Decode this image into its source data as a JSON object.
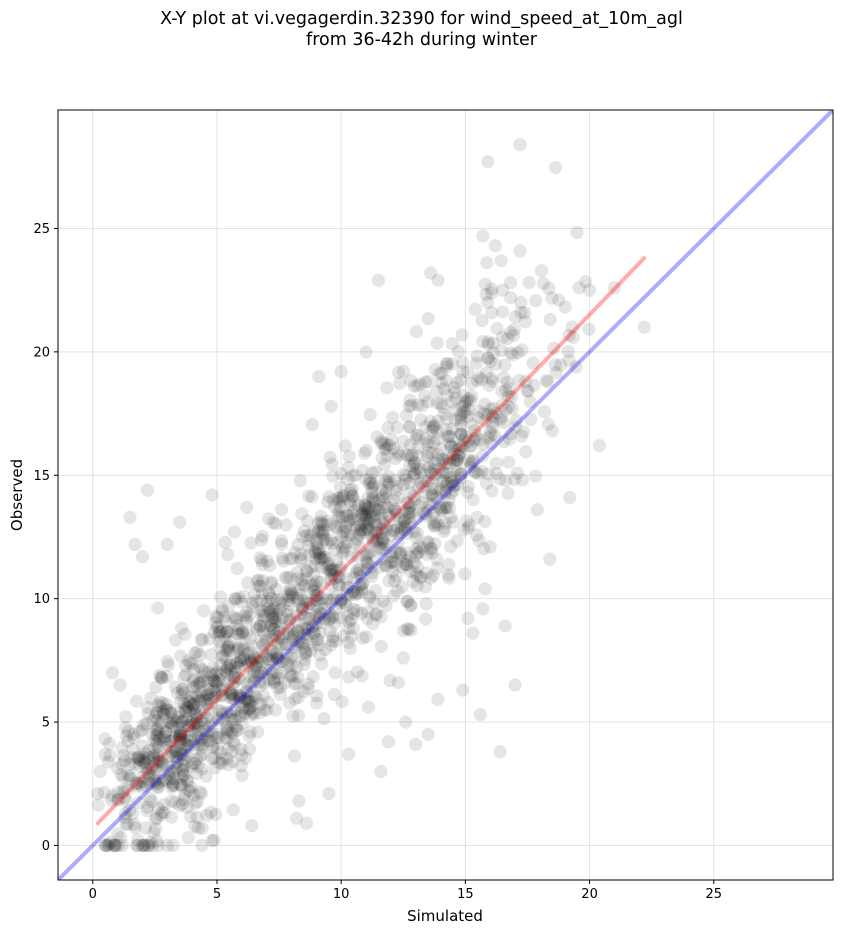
{
  "chart_data": {
    "type": "scatter",
    "title_line1": "X-Y plot at vi.vegagerdin.32390 for wind_speed_at_10m_agl",
    "title_line2": "from 36-42h during winter",
    "xlabel": "Simulated",
    "ylabel": "Observed",
    "xlim": [
      -1.4,
      29.8
    ],
    "ylim": [
      -1.4,
      29.8
    ],
    "x_ticks": [
      0,
      5,
      10,
      15,
      20,
      25
    ],
    "y_ticks": [
      0,
      5,
      10,
      15,
      20,
      25
    ],
    "grid": true,
    "marker_color": "#000000",
    "marker_opacity": 0.1,
    "identity_line": {
      "color": "#0000ff",
      "opacity": 0.33,
      "x": [
        -1.4,
        29.8
      ],
      "y": [
        -1.4,
        29.8
      ]
    },
    "regression_line": {
      "color": "#ff0000",
      "opacity": 0.33,
      "x": [
        0.2,
        22.2
      ],
      "y": [
        0.9,
        23.8
      ]
    },
    "points_note": "approximately 1800 points in the original",
    "points": [
      [
        17.2,
        28.4
      ],
      [
        15.9,
        27.7
      ],
      [
        15.7,
        24.7
      ],
      [
        16.2,
        24.3
      ],
      [
        13.6,
        23.2
      ],
      [
        13.9,
        22.9
      ],
      [
        11.5,
        22.9
      ],
      [
        16.5,
        22.5
      ],
      [
        20.0,
        22.5
      ],
      [
        21.0,
        22.6
      ],
      [
        15.9,
        22.0
      ],
      [
        22.2,
        21.0
      ],
      [
        20.4,
        16.2
      ],
      [
        18.4,
        11.6
      ],
      [
        19.2,
        14.1
      ],
      [
        18.5,
        16.8
      ],
      [
        17.9,
        13.6
      ],
      [
        17.0,
        6.5
      ],
      [
        16.6,
        8.9
      ],
      [
        16.4,
        3.8
      ],
      [
        15.6,
        5.3
      ],
      [
        14.9,
        6.3
      ],
      [
        15.3,
        8.6
      ],
      [
        16.0,
        12.1
      ],
      [
        15.8,
        10.4
      ],
      [
        15.1,
        9.2
      ],
      [
        13.0,
        4.1
      ],
      [
        13.5,
        4.5
      ],
      [
        12.6,
        5.0
      ],
      [
        11.9,
        4.2
      ],
      [
        12.5,
        7.6
      ],
      [
        12.3,
        6.6
      ],
      [
        11.1,
        5.6
      ],
      [
        10.3,
        3.7
      ],
      [
        9.5,
        2.1
      ],
      [
        8.2,
        1.1
      ],
      [
        8.3,
        1.8
      ],
      [
        11.0,
        20.0
      ],
      [
        9.1,
        19.0
      ],
      [
        10.0,
        19.2
      ],
      [
        9.6,
        17.8
      ],
      [
        6.2,
        13.7
      ],
      [
        4.8,
        14.2
      ],
      [
        5.7,
        12.7
      ],
      [
        2.2,
        14.4
      ],
      [
        1.5,
        13.3
      ],
      [
        3.5,
        13.1
      ],
      [
        2.0,
        11.7
      ],
      [
        1.7,
        12.2
      ],
      [
        3.0,
        12.2
      ],
      [
        1.1,
        6.5
      ],
      [
        0.8,
        7.0
      ],
      [
        0.3,
        3.0
      ],
      [
        0.2,
        2.1
      ],
      [
        0.5,
        0.0
      ],
      [
        0.9,
        0.0
      ],
      [
        1.2,
        0.0
      ],
      [
        2.1,
        0.0
      ],
      [
        3.0,
        0.0
      ],
      [
        2.4,
        0.0
      ],
      [
        4.8,
        0.2
      ],
      [
        4.4,
        0.7
      ],
      [
        6.4,
        0.8
      ],
      [
        8.6,
        0.9
      ],
      [
        11.6,
        3.0
      ]
    ]
  }
}
